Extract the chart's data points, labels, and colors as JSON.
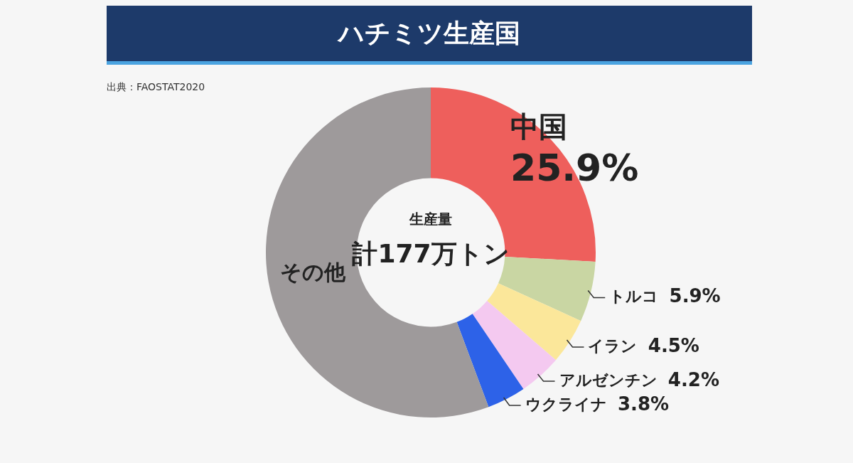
{
  "chart_data": {
    "type": "donut",
    "title": "ハチミツ生産国",
    "categories": [
      "中国",
      "トルコ",
      "イラン",
      "アルゼンチン",
      "ウクライナ",
      "その他"
    ],
    "values": [
      25.9,
      5.9,
      4.5,
      4.2,
      3.8,
      55.7
    ],
    "value_labels": [
      "25.9%",
      "5.9%",
      "4.5%",
      "4.2%",
      "3.8%",
      null
    ],
    "colors": [
      "#ee5f5c",
      "#c9d6a3",
      "#fbe79a",
      "#f4c9f0",
      "#2d62e8",
      "#9e9a9b"
    ],
    "annotations": [
      "出典：FAOSTAT2020",
      "生産量",
      "計177万トン"
    ],
    "legend": false
  }
}
